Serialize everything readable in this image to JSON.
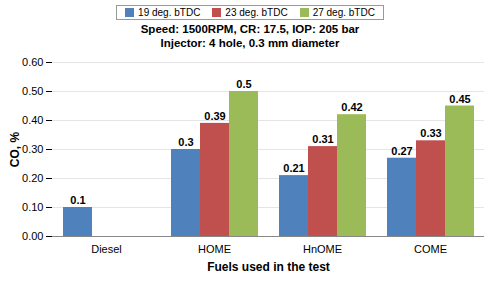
{
  "chart_data": {
    "type": "bar",
    "title": "Speed: 1500RPM, CR: 17.5, IOP: 205 bar",
    "subtitle": "Injector: 4 hole, 0.3 mm diameter",
    "x_label": "Fuels used in the test",
    "y_label": "CO, %",
    "categories": [
      "Diesel",
      "HOME",
      "HnOME",
      "COME"
    ],
    "series": [
      {
        "name": "19 deg. bTDC",
        "color": "#4f81bd",
        "values": [
          0.1,
          0.3,
          0.21,
          0.27
        ]
      },
      {
        "name": "23 deg. bTDC",
        "color": "#c0504d",
        "values": [
          null,
          0.39,
          0.31,
          0.33
        ]
      },
      {
        "name": "27 deg. bTDC",
        "color": "#9bbb59",
        "values": [
          null,
          0.5,
          0.42,
          0.45
        ]
      }
    ],
    "ylim": [
      0,
      0.6
    ],
    "yticks": [
      0,
      0.1,
      0.2,
      0.3,
      0.4,
      0.5,
      0.6
    ],
    "grid": true,
    "legend": "top",
    "data_labels": true
  }
}
